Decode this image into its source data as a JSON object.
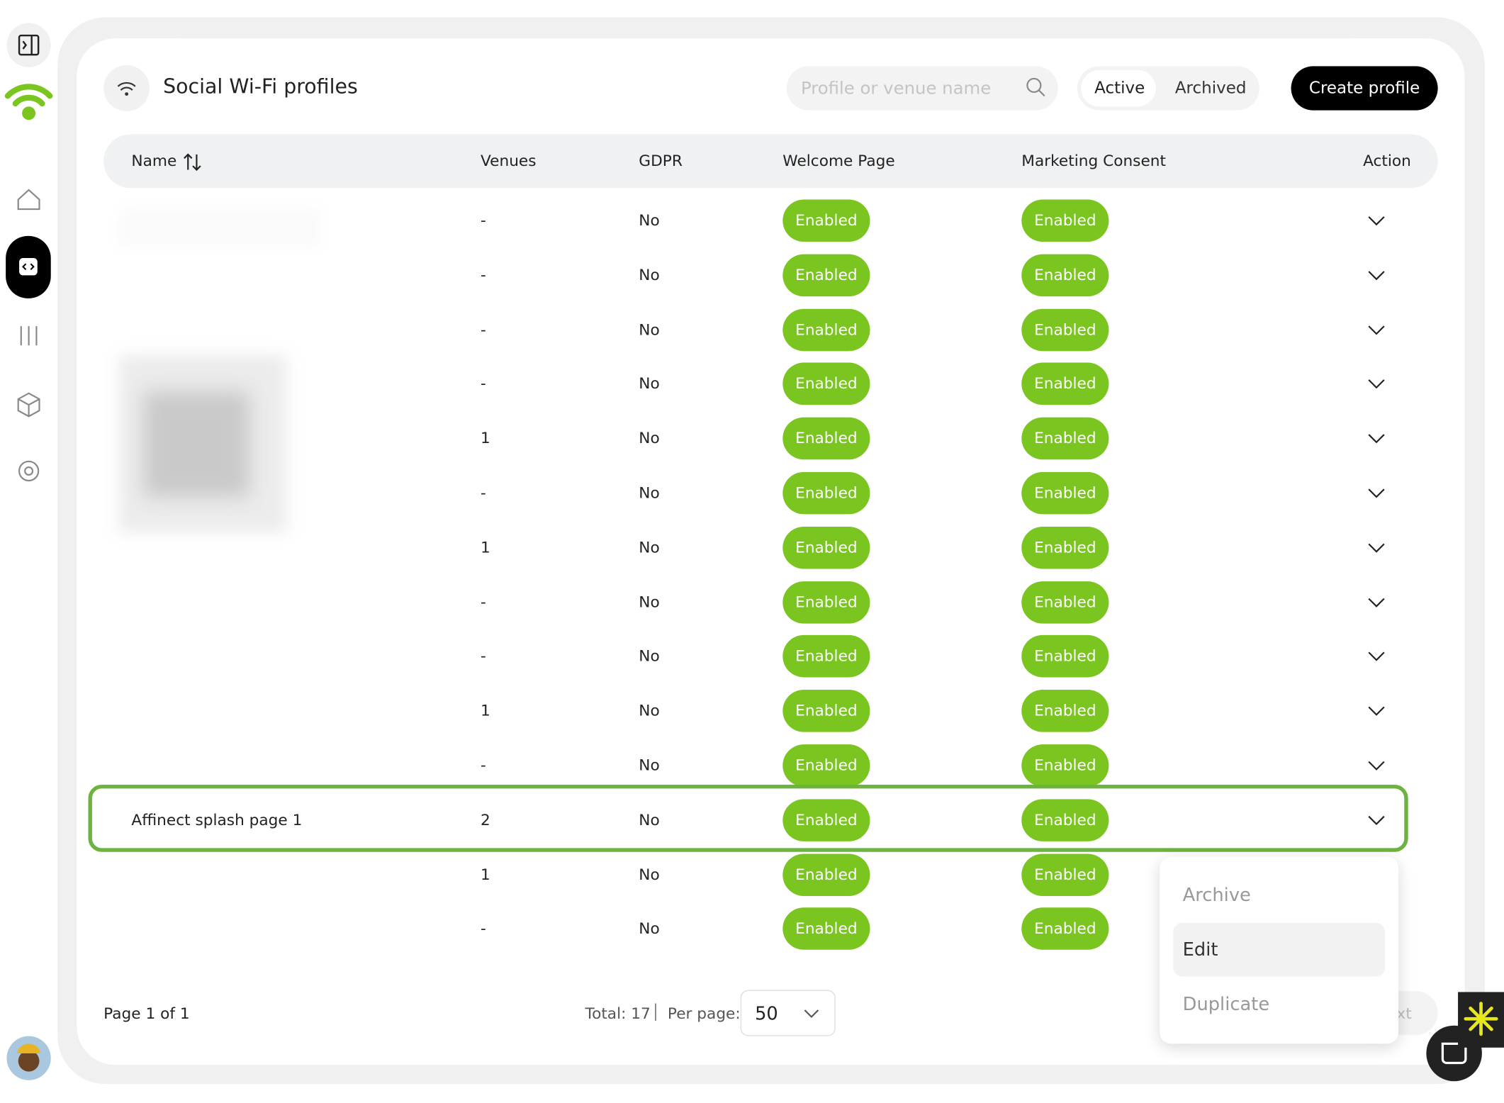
{
  "header": {
    "title": "Social Wi-Fi profiles",
    "search_placeholder": "Profile or venue name",
    "tabs": [
      "Active",
      "Archived"
    ],
    "create_button": "Create profile"
  },
  "table": {
    "columns": [
      "Name",
      "Venues",
      "GDPR",
      "Welcome Page",
      "Marketing Consent",
      "Action"
    ],
    "rows": [
      [
        null,
        "-",
        "No",
        "Enabled",
        "Enabled"
      ],
      [
        null,
        "-",
        "No",
        "Enabled",
        "Enabled"
      ],
      [
        null,
        "-",
        "No",
        "Enabled",
        "Enabled"
      ],
      [
        null,
        "-",
        "No",
        "Enabled",
        "Enabled"
      ],
      [
        null,
        "1",
        "No",
        "Enabled",
        "Enabled"
      ],
      [
        null,
        "-",
        "No",
        "Enabled",
        "Enabled"
      ],
      [
        null,
        "1",
        "No",
        "Enabled",
        "Enabled"
      ],
      [
        null,
        "-",
        "No",
        "Enabled",
        "Enabled"
      ],
      [
        null,
        "-",
        "No",
        "Enabled",
        "Enabled"
      ],
      [
        null,
        "1",
        "No",
        "Enabled",
        "Enabled"
      ],
      [
        null,
        "-",
        "No",
        "Enabled",
        "Enabled"
      ],
      [
        "Affinect splash page 1",
        "2",
        "No",
        "Enabled",
        "Enabled"
      ],
      [
        null,
        "1",
        "No",
        "Enabled",
        "Enabled"
      ],
      [
        null,
        "-",
        "No",
        "Enabled",
        "Enabled"
      ]
    ]
  },
  "menu": {
    "items": [
      "Archive",
      "Edit",
      "Duplicate"
    ]
  },
  "footer": {
    "page": "Page 1 of 1",
    "total": "Total: 17",
    "per_page_label": "Per page:",
    "per_page_value": "50",
    "next_partial": "xt"
  }
}
